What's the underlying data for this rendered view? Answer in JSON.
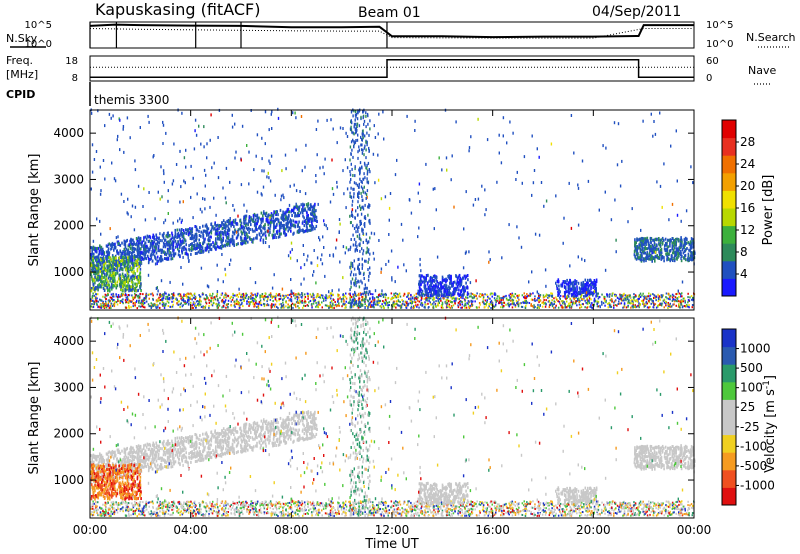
{
  "header": {
    "title": "Kapuskasing (fitACF)",
    "beam": "Beam 01",
    "date": "04/Sep/2011"
  },
  "chart_data": [
    {
      "type": "line",
      "name": "noise_panel",
      "left_label": "N.Sky",
      "right_label": "N.Search",
      "yticks_left": [
        "10^5",
        "10^0"
      ],
      "yticks_right": [
        "10^5",
        "10^0"
      ],
      "series": [
        {
          "name": "N.Sky",
          "x": [
            0,
            0.6,
            1,
            2,
            4,
            6,
            8,
            10,
            11.5,
            12,
            14,
            16,
            18,
            20,
            21.8,
            22,
            24
          ],
          "values": [
            0.85,
            0.88,
            0.9,
            0.88,
            0.86,
            0.85,
            0.8,
            0.8,
            0.82,
            0.45,
            0.45,
            0.42,
            0.44,
            0.44,
            0.46,
            0.88,
            0.88
          ]
        },
        {
          "name": "N.Search",
          "x": [
            0,
            2,
            4,
            6,
            8,
            10,
            11.5,
            12,
            16,
            20,
            22,
            24
          ],
          "values": [
            0.75,
            0.72,
            0.7,
            0.68,
            0.66,
            0.65,
            0.65,
            0.4,
            0.38,
            0.38,
            0.75,
            0.75
          ]
        }
      ]
    },
    {
      "type": "line",
      "name": "frequency_panel",
      "left_label_1": "Freq.",
      "left_label_2": "[MHz]",
      "right_label": "Nave",
      "bottom_left": "CPID",
      "cpid_text": "themis 3300",
      "yticks_left": [
        "18",
        "8"
      ],
      "yticks_right": [
        "60",
        "0"
      ],
      "series": [
        {
          "name": "Freq",
          "x": [
            0,
            11.8,
            11.8,
            21.8,
            21.8,
            24
          ],
          "values": [
            0.15,
            0.15,
            0.85,
            0.85,
            0.15,
            0.15
          ]
        },
        {
          "name": "Nave",
          "x": [
            0,
            24
          ],
          "values": [
            0.55,
            0.55
          ]
        }
      ]
    },
    {
      "type": "heatmap",
      "name": "power_panel",
      "ylabel": "Slant Range [km]",
      "yticks": [
        "1000",
        "2000",
        "3000",
        "4000"
      ],
      "ylim": [
        180,
        4500
      ],
      "xlim": [
        0,
        24
      ],
      "colorbar_label": "Power [dB]",
      "colorbar_ticks": [
        "4",
        "8",
        "12",
        "16",
        "20",
        "24",
        "28"
      ],
      "colorbar_colors": [
        "#1a1aff",
        "#2050c0",
        "#2d8a5a",
        "#3cb03c",
        "#b8d800",
        "#f0e000",
        "#f3a000",
        "#f07000",
        "#e83020",
        "#e00000"
      ]
    },
    {
      "type": "heatmap",
      "name": "velocity_panel",
      "ylabel": "Slant Range [km]",
      "xlabel": "Time UT",
      "yticks": [
        "1000",
        "2000",
        "3000",
        "4000"
      ],
      "ylim": [
        180,
        4500
      ],
      "xlim": [
        0,
        24
      ],
      "xticks": [
        "00:00",
        "04:00",
        "08:00",
        "12:00",
        "16:00",
        "20:00",
        "00:00"
      ],
      "colorbar_label": "Velocity [m s",
      "colorbar_label_sup": "-1",
      "colorbar_label_end": "]",
      "colorbar_ticks": [
        "1000",
        "500",
        "100",
        "25",
        "-25",
        "-100",
        "-500",
        "-1000"
      ],
      "colorbar_colors": [
        "#1a33c8",
        "#2a5ab0",
        "#2a9a6a",
        "#4ec83c",
        "#c8c8c8",
        "#c8c8c8",
        "#f0d020",
        "#f59b20",
        "#f05020",
        "#e01010"
      ]
    }
  ]
}
